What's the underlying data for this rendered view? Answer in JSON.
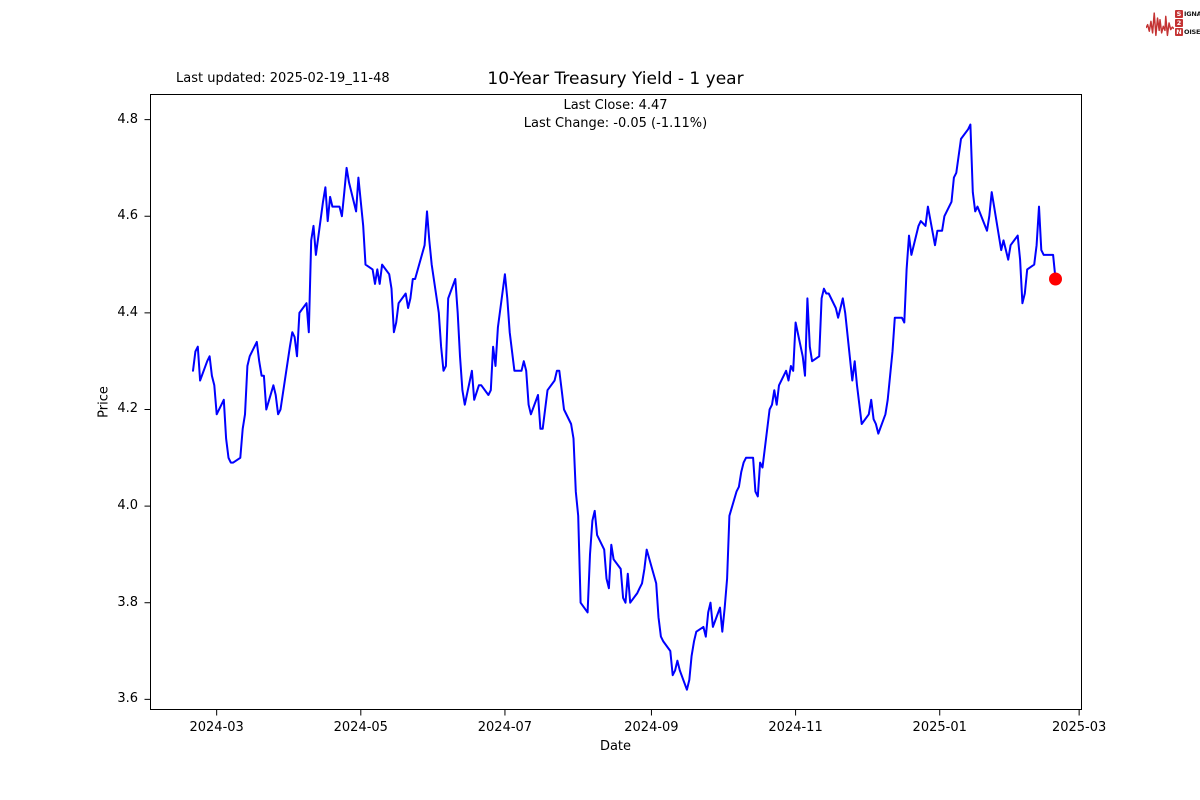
{
  "header": {
    "last_updated": "Last updated: 2025-02-19_11-48"
  },
  "branding": {
    "accent": "#c43333",
    "rows": [
      {
        "lead": "S",
        "rest": "IGNAL"
      },
      {
        "lead": "2",
        "rest": ""
      },
      {
        "lead": "N",
        "rest": "OISE"
      }
    ]
  },
  "chart_data": {
    "type": "line",
    "title": "10-Year Treasury Yield - 1 year",
    "subtitle_line1": "Last Close: 4.47",
    "subtitle_line2": "Last Change: -0.05 (-1.11%)",
    "last_close": 4.47,
    "last_change": -0.05,
    "last_change_pct": "-1.11%",
    "xlabel": "Date",
    "ylabel": "Price",
    "grid": false,
    "xlim": [
      "2024-02-02",
      "2025-03-02"
    ],
    "ylim": [
      3.579,
      4.852
    ],
    "line_color": "#0000ff",
    "marker_color": "#ff0000",
    "x_ticks": [
      {
        "label": "2024-03",
        "date": "2024-03-01"
      },
      {
        "label": "2024-05",
        "date": "2024-05-01"
      },
      {
        "label": "2024-07",
        "date": "2024-07-01"
      },
      {
        "label": "2024-09",
        "date": "2024-09-01"
      },
      {
        "label": "2024-11",
        "date": "2024-11-01"
      },
      {
        "label": "2025-01",
        "date": "2025-01-01"
      },
      {
        "label": "2025-03",
        "date": "2025-03-01"
      }
    ],
    "y_ticks": [
      {
        "label": "4.8",
        "value": 4.8
      },
      {
        "label": "4.6",
        "value": 4.6
      },
      {
        "label": "4.4",
        "value": 4.4
      },
      {
        "label": "4.2",
        "value": 4.2
      },
      {
        "label": "4.0",
        "value": 4.0
      },
      {
        "label": "3.8",
        "value": 3.8
      },
      {
        "label": "3.6",
        "value": 3.6
      }
    ],
    "series": [
      {
        "name": "10-Year Treasury Yield",
        "points": [
          [
            "2024-02-20",
            4.28
          ],
          [
            "2024-02-21",
            4.32
          ],
          [
            "2024-02-22",
            4.33
          ],
          [
            "2024-02-23",
            4.26
          ],
          [
            "2024-02-26",
            4.3
          ],
          [
            "2024-02-27",
            4.31
          ],
          [
            "2024-02-28",
            4.27
          ],
          [
            "2024-02-29",
            4.25
          ],
          [
            "2024-03-01",
            4.19
          ],
          [
            "2024-03-04",
            4.22
          ],
          [
            "2024-03-05",
            4.14
          ],
          [
            "2024-03-06",
            4.1
          ],
          [
            "2024-03-07",
            4.09
          ],
          [
            "2024-03-08",
            4.09
          ],
          [
            "2024-03-11",
            4.1
          ],
          [
            "2024-03-12",
            4.16
          ],
          [
            "2024-03-13",
            4.19
          ],
          [
            "2024-03-14",
            4.29
          ],
          [
            "2024-03-15",
            4.31
          ],
          [
            "2024-03-18",
            4.34
          ],
          [
            "2024-03-19",
            4.3
          ],
          [
            "2024-03-20",
            4.27
          ],
          [
            "2024-03-21",
            4.27
          ],
          [
            "2024-03-22",
            4.2
          ],
          [
            "2024-03-25",
            4.25
          ],
          [
            "2024-03-26",
            4.23
          ],
          [
            "2024-03-27",
            4.19
          ],
          [
            "2024-03-28",
            4.2
          ],
          [
            "2024-04-01",
            4.33
          ],
          [
            "2024-04-02",
            4.36
          ],
          [
            "2024-04-03",
            4.35
          ],
          [
            "2024-04-04",
            4.31
          ],
          [
            "2024-04-05",
            4.4
          ],
          [
            "2024-04-08",
            4.42
          ],
          [
            "2024-04-09",
            4.36
          ],
          [
            "2024-04-10",
            4.55
          ],
          [
            "2024-04-11",
            4.58
          ],
          [
            "2024-04-12",
            4.52
          ],
          [
            "2024-04-15",
            4.63
          ],
          [
            "2024-04-16",
            4.66
          ],
          [
            "2024-04-17",
            4.59
          ],
          [
            "2024-04-18",
            4.64
          ],
          [
            "2024-04-19",
            4.62
          ],
          [
            "2024-04-22",
            4.62
          ],
          [
            "2024-04-23",
            4.6
          ],
          [
            "2024-04-24",
            4.65
          ],
          [
            "2024-04-25",
            4.7
          ],
          [
            "2024-04-26",
            4.67
          ],
          [
            "2024-04-29",
            4.61
          ],
          [
            "2024-04-30",
            4.68
          ],
          [
            "2024-05-01",
            4.63
          ],
          [
            "2024-05-02",
            4.58
          ],
          [
            "2024-05-03",
            4.5
          ],
          [
            "2024-05-06",
            4.49
          ],
          [
            "2024-05-07",
            4.46
          ],
          [
            "2024-05-08",
            4.49
          ],
          [
            "2024-05-09",
            4.46
          ],
          [
            "2024-05-10",
            4.5
          ],
          [
            "2024-05-13",
            4.48
          ],
          [
            "2024-05-14",
            4.45
          ],
          [
            "2024-05-15",
            4.36
          ],
          [
            "2024-05-16",
            4.38
          ],
          [
            "2024-05-17",
            4.42
          ],
          [
            "2024-05-20",
            4.44
          ],
          [
            "2024-05-21",
            4.41
          ],
          [
            "2024-05-22",
            4.43
          ],
          [
            "2024-05-23",
            4.47
          ],
          [
            "2024-05-24",
            4.47
          ],
          [
            "2024-05-28",
            4.54
          ],
          [
            "2024-05-29",
            4.61
          ],
          [
            "2024-05-30",
            4.55
          ],
          [
            "2024-05-31",
            4.5
          ],
          [
            "2024-06-03",
            4.4
          ],
          [
            "2024-06-04",
            4.33
          ],
          [
            "2024-06-05",
            4.28
          ],
          [
            "2024-06-06",
            4.29
          ],
          [
            "2024-06-07",
            4.43
          ],
          [
            "2024-06-10",
            4.47
          ],
          [
            "2024-06-11",
            4.4
          ],
          [
            "2024-06-12",
            4.31
          ],
          [
            "2024-06-13",
            4.24
          ],
          [
            "2024-06-14",
            4.21
          ],
          [
            "2024-06-17",
            4.28
          ],
          [
            "2024-06-18",
            4.22
          ],
          [
            "2024-06-20",
            4.25
          ],
          [
            "2024-06-21",
            4.25
          ],
          [
            "2024-06-24",
            4.23
          ],
          [
            "2024-06-25",
            4.24
          ],
          [
            "2024-06-26",
            4.33
          ],
          [
            "2024-06-27",
            4.29
          ],
          [
            "2024-06-28",
            4.37
          ],
          [
            "2024-07-01",
            4.48
          ],
          [
            "2024-07-02",
            4.43
          ],
          [
            "2024-07-03",
            4.36
          ],
          [
            "2024-07-05",
            4.28
          ],
          [
            "2024-07-08",
            4.28
          ],
          [
            "2024-07-09",
            4.3
          ],
          [
            "2024-07-10",
            4.28
          ],
          [
            "2024-07-11",
            4.21
          ],
          [
            "2024-07-12",
            4.19
          ],
          [
            "2024-07-15",
            4.23
          ],
          [
            "2024-07-16",
            4.16
          ],
          [
            "2024-07-17",
            4.16
          ],
          [
            "2024-07-18",
            4.2
          ],
          [
            "2024-07-19",
            4.24
          ],
          [
            "2024-07-22",
            4.26
          ],
          [
            "2024-07-23",
            4.28
          ],
          [
            "2024-07-24",
            4.28
          ],
          [
            "2024-07-25",
            4.24
          ],
          [
            "2024-07-26",
            4.2
          ],
          [
            "2024-07-29",
            4.17
          ],
          [
            "2024-07-30",
            4.14
          ],
          [
            "2024-07-31",
            4.03
          ],
          [
            "2024-08-01",
            3.98
          ],
          [
            "2024-08-02",
            3.8
          ],
          [
            "2024-08-05",
            3.78
          ],
          [
            "2024-08-06",
            3.9
          ],
          [
            "2024-08-07",
            3.97
          ],
          [
            "2024-08-08",
            3.99
          ],
          [
            "2024-08-09",
            3.94
          ],
          [
            "2024-08-12",
            3.91
          ],
          [
            "2024-08-13",
            3.85
          ],
          [
            "2024-08-14",
            3.83
          ],
          [
            "2024-08-15",
            3.92
          ],
          [
            "2024-08-16",
            3.89
          ],
          [
            "2024-08-19",
            3.87
          ],
          [
            "2024-08-20",
            3.81
          ],
          [
            "2024-08-21",
            3.8
          ],
          [
            "2024-08-22",
            3.86
          ],
          [
            "2024-08-23",
            3.8
          ],
          [
            "2024-08-26",
            3.82
          ],
          [
            "2024-08-27",
            3.83
          ],
          [
            "2024-08-28",
            3.84
          ],
          [
            "2024-08-29",
            3.87
          ],
          [
            "2024-08-30",
            3.91
          ],
          [
            "2024-09-03",
            3.84
          ],
          [
            "2024-09-04",
            3.77
          ],
          [
            "2024-09-05",
            3.73
          ],
          [
            "2024-09-06",
            3.72
          ],
          [
            "2024-09-09",
            3.7
          ],
          [
            "2024-09-10",
            3.65
          ],
          [
            "2024-09-11",
            3.66
          ],
          [
            "2024-09-12",
            3.68
          ],
          [
            "2024-09-13",
            3.66
          ],
          [
            "2024-09-16",
            3.62
          ],
          [
            "2024-09-17",
            3.64
          ],
          [
            "2024-09-18",
            3.69
          ],
          [
            "2024-09-19",
            3.72
          ],
          [
            "2024-09-20",
            3.74
          ],
          [
            "2024-09-23",
            3.75
          ],
          [
            "2024-09-24",
            3.73
          ],
          [
            "2024-09-25",
            3.78
          ],
          [
            "2024-09-26",
            3.8
          ],
          [
            "2024-09-27",
            3.75
          ],
          [
            "2024-09-30",
            3.79
          ],
          [
            "2024-10-01",
            3.74
          ],
          [
            "2024-10-02",
            3.79
          ],
          [
            "2024-10-03",
            3.85
          ],
          [
            "2024-10-04",
            3.98
          ],
          [
            "2024-10-07",
            4.03
          ],
          [
            "2024-10-08",
            4.04
          ],
          [
            "2024-10-09",
            4.07
          ],
          [
            "2024-10-10",
            4.09
          ],
          [
            "2024-10-11",
            4.1
          ],
          [
            "2024-10-14",
            4.1
          ],
          [
            "2024-10-15",
            4.03
          ],
          [
            "2024-10-16",
            4.02
          ],
          [
            "2024-10-17",
            4.09
          ],
          [
            "2024-10-18",
            4.08
          ],
          [
            "2024-10-21",
            4.2
          ],
          [
            "2024-10-22",
            4.21
          ],
          [
            "2024-10-23",
            4.24
          ],
          [
            "2024-10-24",
            4.21
          ],
          [
            "2024-10-25",
            4.25
          ],
          [
            "2024-10-28",
            4.28
          ],
          [
            "2024-10-29",
            4.26
          ],
          [
            "2024-10-30",
            4.29
          ],
          [
            "2024-10-31",
            4.28
          ],
          [
            "2024-11-01",
            4.38
          ],
          [
            "2024-11-04",
            4.31
          ],
          [
            "2024-11-05",
            4.27
          ],
          [
            "2024-11-06",
            4.43
          ],
          [
            "2024-11-07",
            4.33
          ],
          [
            "2024-11-08",
            4.3
          ],
          [
            "2024-11-11",
            4.31
          ],
          [
            "2024-11-12",
            4.43
          ],
          [
            "2024-11-13",
            4.45
          ],
          [
            "2024-11-14",
            4.44
          ],
          [
            "2024-11-15",
            4.44
          ],
          [
            "2024-11-18",
            4.41
          ],
          [
            "2024-11-19",
            4.39
          ],
          [
            "2024-11-20",
            4.41
          ],
          [
            "2024-11-21",
            4.43
          ],
          [
            "2024-11-22",
            4.4
          ],
          [
            "2024-11-25",
            4.26
          ],
          [
            "2024-11-26",
            4.3
          ],
          [
            "2024-11-27",
            4.25
          ],
          [
            "2024-11-29",
            4.17
          ],
          [
            "2024-12-02",
            4.19
          ],
          [
            "2024-12-03",
            4.22
          ],
          [
            "2024-12-04",
            4.18
          ],
          [
            "2024-12-05",
            4.17
          ],
          [
            "2024-12-06",
            4.15
          ],
          [
            "2024-12-09",
            4.19
          ],
          [
            "2024-12-10",
            4.22
          ],
          [
            "2024-12-11",
            4.27
          ],
          [
            "2024-12-12",
            4.32
          ],
          [
            "2024-12-13",
            4.39
          ],
          [
            "2024-12-16",
            4.39
          ],
          [
            "2024-12-17",
            4.38
          ],
          [
            "2024-12-18",
            4.49
          ],
          [
            "2024-12-19",
            4.56
          ],
          [
            "2024-12-20",
            4.52
          ],
          [
            "2024-12-23",
            4.58
          ],
          [
            "2024-12-24",
            4.59
          ],
          [
            "2024-12-26",
            4.58
          ],
          [
            "2024-12-27",
            4.62
          ],
          [
            "2024-12-30",
            4.54
          ],
          [
            "2024-12-31",
            4.57
          ],
          [
            "2025-01-02",
            4.57
          ],
          [
            "2025-01-03",
            4.6
          ],
          [
            "2025-01-06",
            4.63
          ],
          [
            "2025-01-07",
            4.68
          ],
          [
            "2025-01-08",
            4.69
          ],
          [
            "2025-01-10",
            4.76
          ],
          [
            "2025-01-13",
            4.78
          ],
          [
            "2025-01-14",
            4.79
          ],
          [
            "2025-01-15",
            4.65
          ],
          [
            "2025-01-16",
            4.61
          ],
          [
            "2025-01-17",
            4.62
          ],
          [
            "2025-01-21",
            4.57
          ],
          [
            "2025-01-22",
            4.6
          ],
          [
            "2025-01-23",
            4.65
          ],
          [
            "2025-01-24",
            4.62
          ],
          [
            "2025-01-27",
            4.53
          ],
          [
            "2025-01-28",
            4.55
          ],
          [
            "2025-01-29",
            4.53
          ],
          [
            "2025-01-30",
            4.51
          ],
          [
            "2025-01-31",
            4.54
          ],
          [
            "2025-02-03",
            4.56
          ],
          [
            "2025-02-04",
            4.51
          ],
          [
            "2025-02-05",
            4.42
          ],
          [
            "2025-02-06",
            4.44
          ],
          [
            "2025-02-07",
            4.49
          ],
          [
            "2025-02-10",
            4.5
          ],
          [
            "2025-02-11",
            4.54
          ],
          [
            "2025-02-12",
            4.62
          ],
          [
            "2025-02-13",
            4.53
          ],
          [
            "2025-02-14",
            4.52
          ],
          [
            "2025-02-18",
            4.52
          ],
          [
            "2025-02-19",
            4.47
          ]
        ]
      }
    ]
  }
}
